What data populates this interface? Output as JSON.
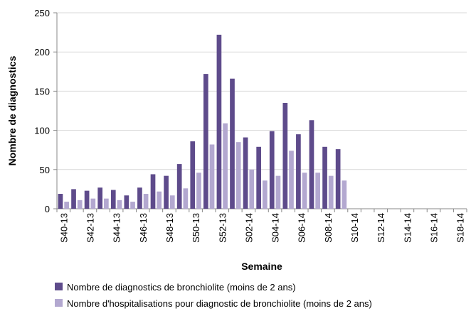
{
  "chart_data": {
    "type": "bar",
    "x_label": "Semaine",
    "y_label": "Nombre de diagnostics",
    "categories": [
      "S40-13",
      null,
      "S42-13",
      null,
      "S44-13",
      null,
      "S46-13",
      null,
      "S48-13",
      null,
      "S50-13",
      null,
      "S52-13",
      null,
      "S02-14",
      null,
      "S04-14",
      null,
      "S06-14",
      null,
      "S08-14",
      null,
      "S10-14",
      null,
      "S12-14",
      null,
      "S14-14",
      null,
      "S16-14",
      null,
      "S18-14"
    ],
    "series": [
      {
        "name": "Nombre de diagnostics de bronchiolite (moins de 2  ans)",
        "color": "#5e4b8b",
        "values": [
          19,
          25,
          23,
          27,
          24,
          17,
          27,
          44,
          42,
          57,
          86,
          172,
          222,
          166,
          91,
          79,
          99,
          135,
          95,
          113,
          79,
          76,
          null,
          null,
          null,
          null,
          null,
          null,
          null,
          null,
          null
        ]
      },
      {
        "name": "Nombre d'hospitalisations pour diagnostic de bronchiolite (moins de 2 ans)",
        "color": "#b3a8d0",
        "values": [
          9,
          11,
          13,
          13,
          11,
          9,
          19,
          22,
          17,
          26,
          46,
          82,
          109,
          85,
          50,
          36,
          42,
          74,
          46,
          46,
          42,
          36,
          null,
          null,
          null,
          null,
          null,
          null,
          null,
          null,
          null
        ]
      }
    ],
    "ylim": [
      0,
      250
    ],
    "yticks": [
      0,
      50,
      100,
      150,
      200,
      250
    ],
    "grid": true
  }
}
